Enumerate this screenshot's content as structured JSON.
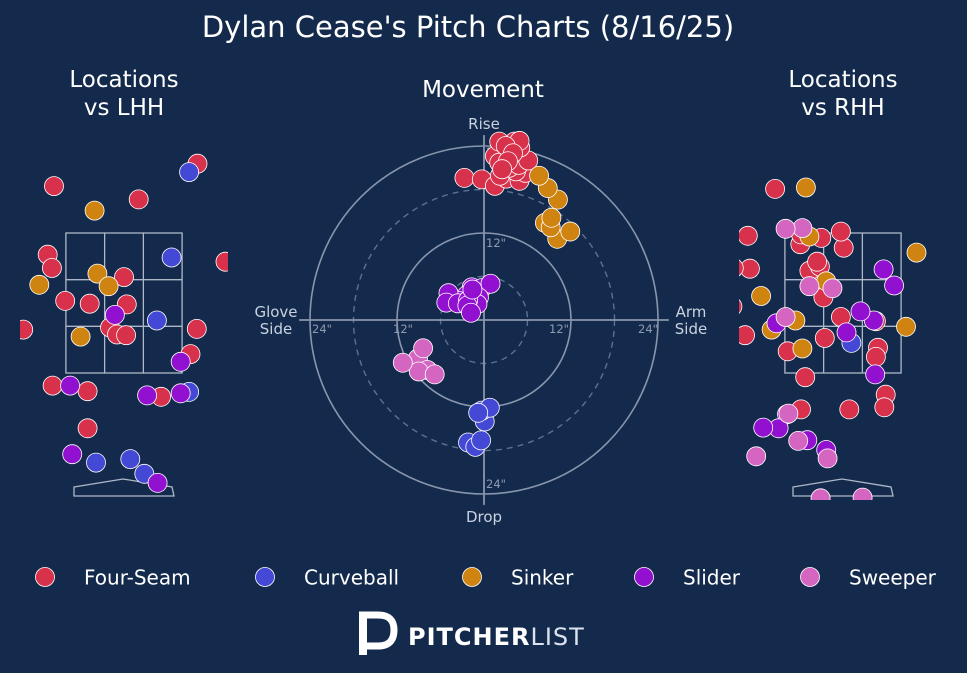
{
  "title": "Dylan Cease's Pitch Charts (8/16/25)",
  "colors": {
    "background": "#142a4c",
    "Four-Seam": "#d8314b",
    "Curveball": "#4349d4",
    "Sinker": "#cf8412",
    "Slider": "#9210cf",
    "Sweeper": "#d466c2"
  },
  "logo": {
    "mark": "pitcher-list-logo-icon",
    "bold": "PITCHER",
    "light": "LIST"
  },
  "legend": [
    "Four-Seam",
    "Curveball",
    "Sinker",
    "Slider",
    "Sweeper"
  ],
  "chart_data": [
    {
      "type": "scatter",
      "name": "lhh",
      "title": "Locations\nvs LHH",
      "xlim": [
        -2.0,
        2.0
      ],
      "ylim": [
        -0.6,
        5.0
      ],
      "strike_zone": {
        "x": [
          -0.83,
          0.83
        ],
        "y": [
          1.5,
          3.5
        ]
      },
      "series": [
        {
          "name": "Four-Seam",
          "points": [
            [
              1.05,
              4.49
            ],
            [
              -1.0,
              4.17
            ],
            [
              0.21,
              3.98
            ],
            [
              -1.09,
              3.19
            ],
            [
              -1.03,
              3.0
            ],
            [
              0.0,
              2.87
            ],
            [
              1.45,
              3.09
            ],
            [
              -0.84,
              2.53
            ],
            [
              -0.49,
              2.49
            ],
            [
              0.04,
              2.48
            ],
            [
              -1.44,
              2.12
            ],
            [
              1.04,
              2.13
            ],
            [
              -0.2,
              2.15
            ],
            [
              -0.1,
              2.05
            ],
            [
              0.03,
              2.04
            ],
            [
              0.95,
              1.77
            ],
            [
              -1.02,
              1.32
            ],
            [
              -0.52,
              1.24
            ],
            [
              0.53,
              1.16
            ],
            [
              -0.52,
              0.71
            ]
          ]
        },
        {
          "name": "Curveball",
          "points": [
            [
              0.93,
              4.37
            ],
            [
              0.68,
              3.15
            ],
            [
              0.47,
              2.25
            ],
            [
              -0.4,
              0.22
            ],
            [
              0.09,
              0.27
            ],
            [
              0.29,
              0.06
            ],
            [
              0.93,
              1.23
            ]
          ]
        },
        {
          "name": "Sinker",
          "points": [
            [
              -0.42,
              3.82
            ],
            [
              -0.38,
              2.92
            ],
            [
              -0.22,
              2.74
            ],
            [
              -1.21,
              2.76
            ],
            [
              -0.62,
              2.02
            ]
          ]
        },
        {
          "name": "Slider",
          "points": [
            [
              -0.13,
              2.33
            ],
            [
              0.81,
              1.66
            ],
            [
              -0.77,
              1.32
            ],
            [
              0.33,
              1.18
            ],
            [
              0.81,
              1.21
            ],
            [
              -0.74,
              0.34
            ],
            [
              0.48,
              -0.07
            ]
          ]
        },
        {
          "name": "Sweeper",
          "points": []
        }
      ]
    },
    {
      "type": "scatter",
      "name": "movement",
      "title": "Movement",
      "xlabel": "Glove\nSide",
      "xlabel_right": "Arm\nSide",
      "ylabel_top": "Rise",
      "ylabel_bottom": "Drop",
      "range_in": 30,
      "rings_in": [
        12,
        24
      ],
      "ticks": [
        "12\"",
        "24\"",
        "12\"",
        "24\"",
        "12\"",
        "24\"",
        "24\""
      ],
      "series": [
        {
          "name": "Four-Seam",
          "points": [
            [
              -2.7,
              19.6
            ],
            [
              -0.3,
              19.4
            ],
            [
              1.5,
              18.5
            ],
            [
              3.1,
              19.5
            ],
            [
              4.9,
              19.2
            ],
            [
              2.2,
              19.9
            ],
            [
              5.7,
              20.3
            ],
            [
              4.4,
              20.5
            ],
            [
              2.5,
              21.5
            ],
            [
              4.0,
              22.2
            ],
            [
              2.2,
              23.1
            ],
            [
              1.5,
              22.6
            ],
            [
              2.1,
              21.7
            ],
            [
              3.5,
              21.0
            ],
            [
              4.8,
              21.4
            ],
            [
              6.1,
              22.0
            ],
            [
              3.8,
              23.3
            ],
            [
              5.0,
              23.8
            ],
            [
              4.2,
              24.6
            ],
            [
              2.1,
              24.6
            ],
            [
              4.9,
              24.7
            ],
            [
              3.0,
              24.0
            ],
            [
              4.0,
              23.0
            ],
            [
              3.3,
              21.9
            ],
            [
              2.5,
              20.8
            ]
          ]
        },
        {
          "name": "Curveball",
          "points": [
            [
              -2.2,
              -16.9
            ],
            [
              -1.2,
              -17.5
            ],
            [
              -0.4,
              -16.6
            ],
            [
              0.1,
              -14.0
            ],
            [
              -0.3,
              -12.5
            ],
            [
              0.8,
              -12.1
            ],
            [
              -0.8,
              -12.8
            ]
          ]
        },
        {
          "name": "Sinker",
          "points": [
            [
              8.4,
              13.4
            ],
            [
              10.1,
              11.2
            ],
            [
              11.9,
              12.2
            ],
            [
              9.2,
              12.8
            ],
            [
              9.3,
              14.1
            ],
            [
              10.2,
              16.6
            ],
            [
              8.8,
              18.2
            ],
            [
              7.6,
              19.9
            ]
          ]
        },
        {
          "name": "Slider",
          "points": [
            [
              -1.7,
              4.5
            ],
            [
              -0.3,
              4.4
            ],
            [
              0.9,
              5.0
            ],
            [
              -0.7,
              3.1
            ],
            [
              -0.9,
              2.2
            ],
            [
              -2.4,
              3.4
            ],
            [
              -3.4,
              2.6
            ],
            [
              -4.9,
              3.7
            ],
            [
              -5.2,
              2.4
            ],
            [
              -3.6,
              2.3
            ],
            [
              -2.2,
              2.7
            ],
            [
              -2.3,
              2.0
            ],
            [
              -1.8,
              1.0
            ],
            [
              -1.6,
              4.2
            ]
          ]
        },
        {
          "name": "Sweeper",
          "points": [
            [
              -9.1,
              -5.3
            ],
            [
              -8.4,
              -3.9
            ],
            [
              -7.8,
              -6.9
            ],
            [
              -9.0,
              -7.1
            ],
            [
              -11.2,
              -5.9
            ],
            [
              -6.8,
              -7.5
            ]
          ]
        }
      ]
    },
    {
      "type": "scatter",
      "name": "rhh",
      "title": "Locations\nvs RHH",
      "xlim": [
        -2.0,
        2.0
      ],
      "ylim": [
        -0.6,
        5.0
      ],
      "strike_zone": {
        "x": [
          -0.83,
          0.83
        ],
        "y": [
          1.5,
          3.5
        ]
      },
      "series": [
        {
          "name": "Four-Seam",
          "points": [
            [
              -0.97,
              4.13
            ],
            [
              -0.61,
              3.34
            ],
            [
              -0.6,
              3.48
            ],
            [
              -1.36,
              3.46
            ],
            [
              -0.31,
              3.43
            ],
            [
              -0.28,
              2.58
            ],
            [
              -0.4,
              2.92
            ],
            [
              -0.48,
              2.96
            ],
            [
              -1.33,
              2.99
            ],
            [
              -0.33,
              3.02
            ],
            [
              -0.37,
              3.09
            ],
            [
              0.01,
              3.29
            ],
            [
              -0.03,
              3.52
            ],
            [
              -1.56,
              3.0
            ],
            [
              -0.03,
              2.3
            ],
            [
              0.47,
              2.24
            ],
            [
              -1.58,
              2.45
            ],
            [
              0.5,
              1.86
            ],
            [
              -1.4,
              2.04
            ],
            [
              -0.26,
              2.0
            ],
            [
              -1.8,
              1.95
            ],
            [
              -0.79,
              1.81
            ],
            [
              0.47,
              1.73
            ],
            [
              -0.54,
              1.44
            ],
            [
              0.61,
              1.19
            ],
            [
              0.59,
              1.01
            ],
            [
              0.09,
              0.98
            ],
            [
              -0.6,
              0.98
            ]
          ]
        },
        {
          "name": "Curveball",
          "points": [
            [
              0.12,
              1.93
            ]
          ]
        },
        {
          "name": "Sinker",
          "points": [
            [
              -0.53,
              4.15
            ],
            [
              -0.48,
              3.45
            ],
            [
              -0.24,
              2.81
            ],
            [
              1.05,
              3.22
            ],
            [
              0.9,
              2.16
            ],
            [
              -1.17,
              2.6
            ],
            [
              -0.68,
              2.25
            ],
            [
              -0.58,
              1.85
            ],
            [
              -1.02,
              2.12
            ]
          ]
        },
        {
          "name": "Slider",
          "points": [
            [
              0.58,
              2.98
            ],
            [
              -0.95,
              2.21
            ],
            [
              0.44,
              2.25
            ],
            [
              0.73,
              2.75
            ],
            [
              0.25,
              2.38
            ],
            [
              0.05,
              2.08
            ],
            [
              0.46,
              1.48
            ],
            [
              -0.8,
              0.91
            ],
            [
              -0.51,
              0.54
            ],
            [
              -0.24,
              0.4
            ],
            [
              -0.92,
              0.71
            ],
            [
              -1.14,
              0.72
            ]
          ]
        },
        {
          "name": "Sweeper",
          "points": [
            [
              -0.58,
              3.57
            ],
            [
              -0.82,
              3.56
            ],
            [
              -0.48,
              2.74
            ],
            [
              -0.15,
              2.71
            ],
            [
              -0.82,
              2.3
            ],
            [
              -0.78,
              0.92
            ],
            [
              -0.64,
              0.53
            ],
            [
              -0.22,
              0.28
            ],
            [
              -1.24,
              0.31
            ],
            [
              -0.32,
              -0.29
            ],
            [
              0.28,
              -0.28
            ]
          ]
        }
      ]
    }
  ]
}
